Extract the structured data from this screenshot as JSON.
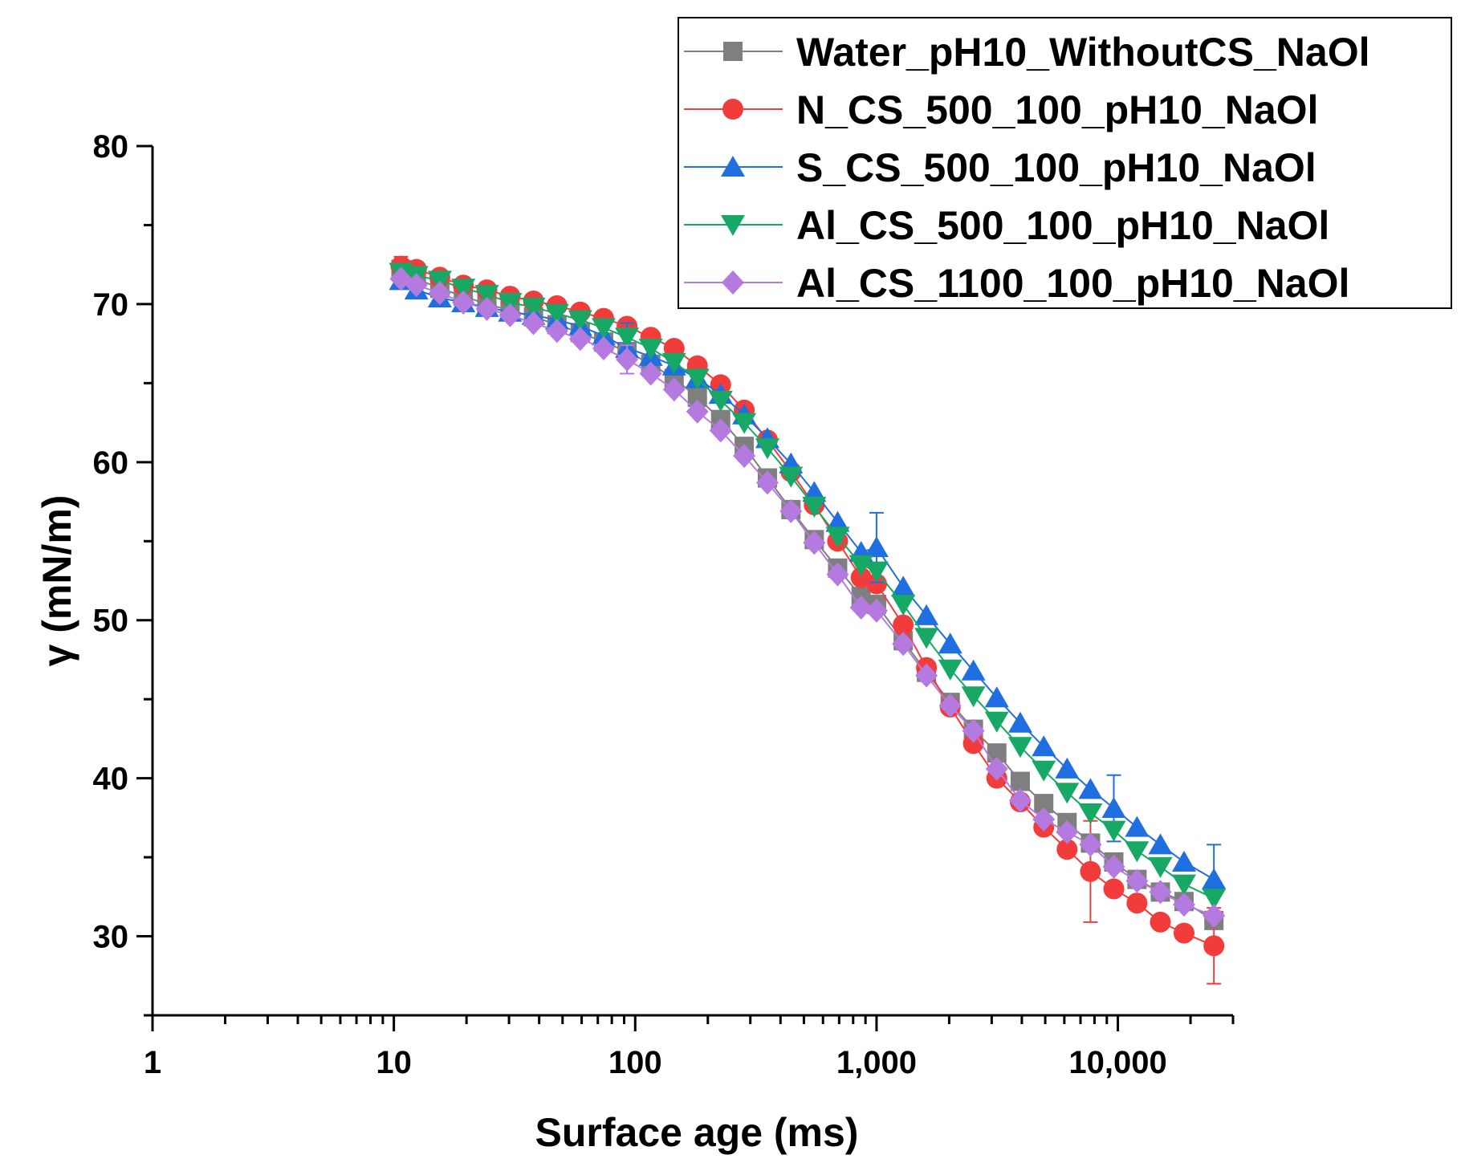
{
  "chart_data": {
    "type": "scatter",
    "xscale": "log",
    "xlabel": "Surface age (ms)",
    "ylabel": "γ (mN/m)",
    "xlim": [
      1,
      30000
    ],
    "ylim": [
      25,
      80
    ],
    "xticks": [
      1,
      10,
      100,
      1000,
      10000
    ],
    "xtick_labels": [
      "1",
      "10",
      "100",
      "1,000",
      "10,000"
    ],
    "yticks": [
      30,
      40,
      50,
      60,
      70,
      80
    ],
    "ytick_labels": [
      "30",
      "40",
      "50",
      "60",
      "70",
      "80"
    ],
    "legend_position": "top-right",
    "x": [
      10.7,
      12.4,
      15.5,
      19.4,
      24.3,
      30.3,
      37.9,
      47.4,
      59.2,
      74.0,
      92.5,
      116,
      145,
      181,
      226,
      283,
      353,
      442,
      552,
      690,
      863,
      1000,
      1290,
      1610,
      2020,
      2520,
      3150,
      3940,
      4930,
      6160,
      7700,
      9620,
      12000,
      15000,
      18800,
      25000
    ],
    "series": [
      {
        "name": "Water_pH10_WithoutCS_NaOl",
        "color": "#7f7f7f",
        "marker": "square",
        "values": [
          72.2,
          71.6,
          71.0,
          70.5,
          70.0,
          69.6,
          69.2,
          68.7,
          68.2,
          67.6,
          67.0,
          66.2,
          65.3,
          64.1,
          62.7,
          61.0,
          59.0,
          57.0,
          55.1,
          53.3,
          51.5,
          51.0,
          48.7,
          46.7,
          44.8,
          43.1,
          41.6,
          39.8,
          38.4,
          37.2,
          35.9,
          34.7,
          33.6,
          32.8,
          32.2,
          31.0
        ],
        "error_bars": []
      },
      {
        "name": "N_CS_500_100_pH10_NaOl",
        "color": "#f23c3c",
        "marker": "circle",
        "values": [
          72.4,
          72.2,
          71.7,
          71.2,
          70.9,
          70.5,
          70.2,
          69.9,
          69.5,
          69.1,
          68.6,
          67.9,
          67.2,
          66.1,
          64.9,
          63.3,
          61.4,
          59.4,
          57.3,
          55.0,
          52.7,
          52.3,
          49.7,
          47.0,
          44.5,
          42.2,
          40.0,
          38.5,
          36.9,
          35.5,
          34.1,
          33.0,
          32.1,
          30.9,
          30.2,
          29.4
        ],
        "error_bars": [
          {
            "x": 10.7,
            "err": 0.6
          },
          {
            "x": 7700,
            "err": 3.2
          },
          {
            "x": 25000,
            "err": 2.4
          }
        ]
      },
      {
        "name": "S_CS_500_100_pH10_NaOl",
        "color": "#1f6fe0",
        "marker": "triangle-up",
        "values": [
          71.5,
          70.9,
          70.4,
          70.1,
          69.8,
          69.5,
          69.3,
          69.0,
          68.6,
          68.0,
          67.2,
          66.7,
          66.1,
          65.3,
          64.3,
          63.0,
          61.5,
          59.9,
          58.1,
          56.2,
          54.3,
          54.6,
          52.1,
          50.3,
          48.5,
          46.8,
          45.1,
          43.5,
          42.0,
          40.6,
          39.3,
          38.1,
          36.9,
          35.8,
          34.7,
          33.6
        ],
        "error_bars": [
          {
            "x": 10.7,
            "err": 0.4
          },
          {
            "x": 92.5,
            "err": 1.6
          },
          {
            "x": 1000,
            "err": 2.2
          },
          {
            "x": 9620,
            "err": 2.1
          },
          {
            "x": 25000,
            "err": 2.2
          }
        ]
      },
      {
        "name": "Al_CS_500_100_pH10_NaOl",
        "color": "#17a866",
        "marker": "triangle-down",
        "values": [
          72.0,
          71.8,
          71.5,
          71.0,
          70.6,
          70.1,
          69.8,
          69.4,
          69.0,
          68.5,
          67.9,
          67.2,
          66.3,
          65.3,
          63.9,
          62.5,
          60.9,
          59.1,
          57.2,
          55.3,
          53.5,
          53.1,
          51.0,
          48.9,
          46.9,
          45.2,
          43.6,
          42.0,
          40.5,
          39.1,
          37.8,
          36.7,
          35.4,
          34.4,
          33.3,
          32.4
        ],
        "error_bars": []
      },
      {
        "name": "Al_CS_1100_100_pH10_NaOl",
        "color": "#b57ae0",
        "marker": "diamond",
        "values": [
          71.6,
          71.2,
          70.7,
          70.1,
          69.7,
          69.3,
          68.8,
          68.3,
          67.8,
          67.2,
          66.5,
          65.6,
          64.6,
          63.2,
          62.0,
          60.4,
          58.7,
          56.9,
          54.9,
          52.9,
          50.8,
          50.6,
          48.5,
          46.5,
          44.6,
          43.0,
          40.6,
          38.6,
          37.4,
          36.6,
          35.8,
          34.4,
          33.5,
          32.8,
          32.0,
          31.3
        ],
        "error_bars": [
          {
            "x": 92.5,
            "err": 0.9
          }
        ]
      }
    ]
  }
}
